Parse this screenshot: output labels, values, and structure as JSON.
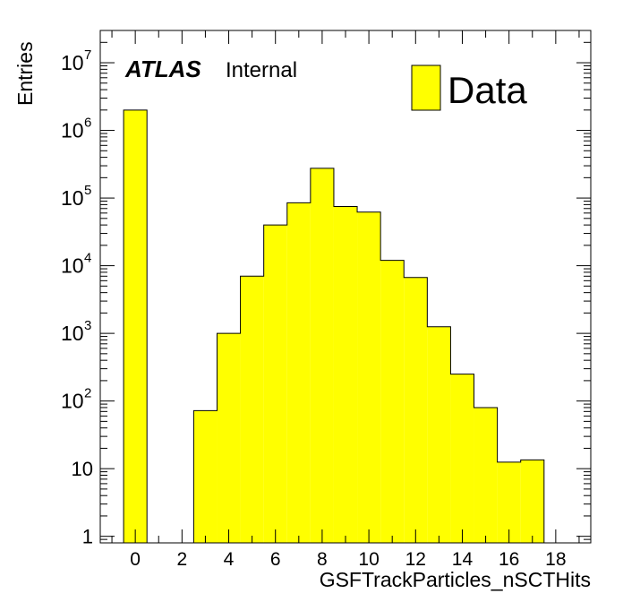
{
  "chart_data": {
    "type": "bar",
    "histogram": true,
    "xlabel": "GSFTrackParticles_nSCTHits",
    "ylabel": "Entries",
    "xlim": [
      -1.5,
      19.5
    ],
    "ylim": [
      0.8,
      30000000
    ],
    "yscale": "log",
    "bin_width": 1,
    "bins": [
      {
        "x": 0,
        "value": 2000000
      },
      {
        "x": 3,
        "value": 72
      },
      {
        "x": 4,
        "value": 1000
      },
      {
        "x": 5,
        "value": 7000
      },
      {
        "x": 6,
        "value": 40000
      },
      {
        "x": 7,
        "value": 85000
      },
      {
        "x": 8,
        "value": 275000
      },
      {
        "x": 9,
        "value": 75000
      },
      {
        "x": 10,
        "value": 62000
      },
      {
        "x": 11,
        "value": 12000
      },
      {
        "x": 12,
        "value": 6700
      },
      {
        "x": 13,
        "value": 1250
      },
      {
        "x": 14,
        "value": 250
      },
      {
        "x": 15,
        "value": 80
      },
      {
        "x": 16,
        "value": 12.5
      },
      {
        "x": 17,
        "value": 13.5
      }
    ],
    "x_ticks": [
      "0",
      "2",
      "4",
      "6",
      "8",
      "10",
      "12",
      "14",
      "16",
      "18"
    ],
    "y_ticks": [
      {
        "value": 1,
        "label": "1"
      },
      {
        "value": 10,
        "label": "10"
      },
      {
        "value": 100,
        "base": "10",
        "exp": "2"
      },
      {
        "value": 1000,
        "base": "10",
        "exp": "3"
      },
      {
        "value": 10000,
        "base": "10",
        "exp": "4"
      },
      {
        "value": 100000,
        "base": "10",
        "exp": "5"
      },
      {
        "value": 1000000,
        "base": "10",
        "exp": "6"
      },
      {
        "value": 10000000,
        "base": "10",
        "exp": "7"
      }
    ],
    "legend": {
      "label": "Data",
      "placement": "top-right"
    },
    "fill_color": "#ffff00",
    "line_color": "#000000",
    "grid": false
  },
  "annotation": {
    "experiment": "ATLAS",
    "status": "Internal"
  }
}
